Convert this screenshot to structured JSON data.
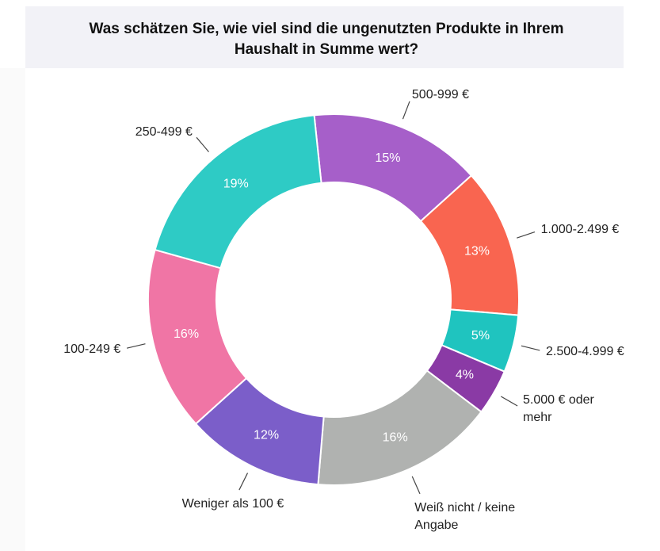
{
  "chart_data": {
    "type": "donut",
    "title": "Was schätzen Sie, wie viel sind die ungenutzten Produkte in Ihrem Haushalt in Summe wert?",
    "categories": [
      "500-999 €",
      "1.000-2.499 €",
      "2.500-4.999 €",
      "5.000 € oder mehr",
      "Weiß nicht / keine Angabe",
      "Weniger als 100 €",
      "100-249 €",
      "250-499 €"
    ],
    "values": [
      15,
      13,
      5,
      4,
      16,
      12,
      16,
      19
    ],
    "value_labels": [
      "15%",
      "13%",
      "5%",
      "4%",
      "16%",
      "12%",
      "16%",
      "19%"
    ],
    "colors": [
      "#a65fc9",
      "#f96550",
      "#1fc4bf",
      "#8a3aa5",
      "#b0b2b0",
      "#7b5ec9",
      "#f075a5",
      "#2ecbc5"
    ]
  }
}
